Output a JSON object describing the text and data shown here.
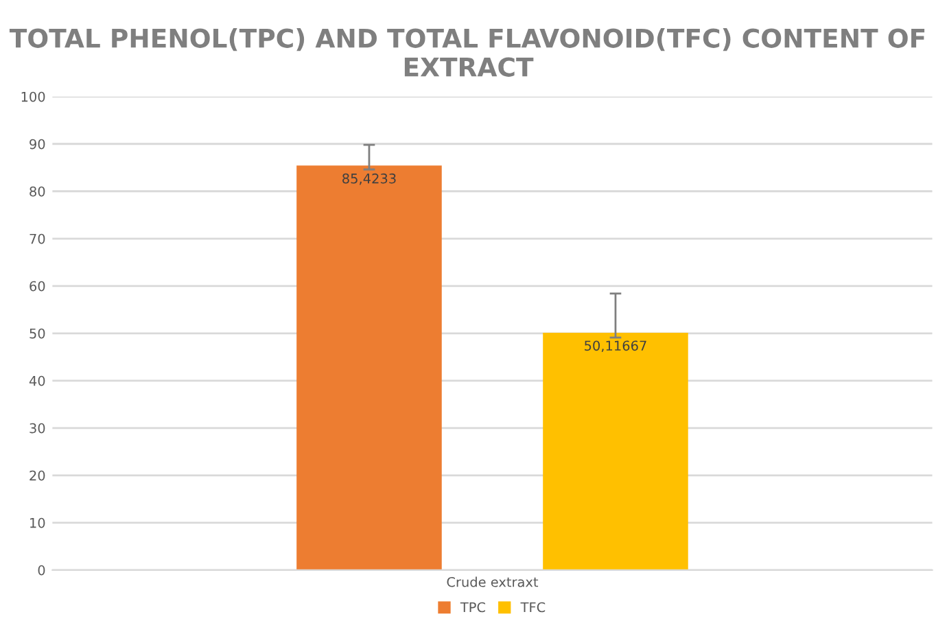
{
  "chart_data": {
    "type": "bar",
    "title": "TOTAL PHENOL(TPC) AND TOTAL FLAVONOID(TFC) CONTENT OF EXTRACT",
    "categories": [
      "Crude extraxt"
    ],
    "series": [
      {
        "name": "TPC",
        "color": "#ed7d31",
        "values": [
          85.4233
        ],
        "errors": [
          [
            84.6,
            89.8
          ]
        ],
        "value_labels": [
          "85,4233"
        ]
      },
      {
        "name": "TFC",
        "color": "#ffc000",
        "values": [
          50.11667
        ],
        "errors": [
          [
            49.1,
            58.4
          ]
        ],
        "value_labels": [
          "50,11667"
        ]
      }
    ],
    "ylim": [
      0,
      100
    ],
    "yticks": [
      0,
      10,
      20,
      30,
      40,
      50,
      60,
      70,
      80,
      90,
      100
    ],
    "grid": "y",
    "legend": "bottom"
  }
}
